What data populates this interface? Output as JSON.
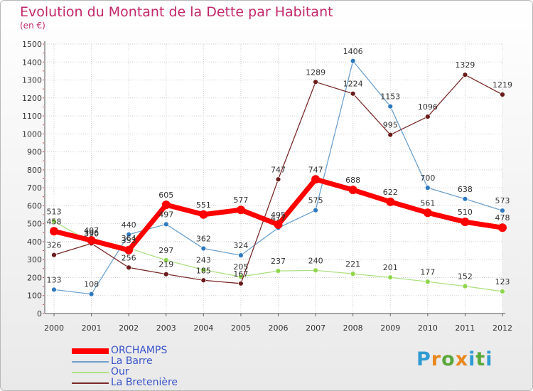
{
  "header": {
    "title": "Evolution du Montant de la Dette par Habitant",
    "unit": "(en €)"
  },
  "brand": {
    "text": "Proxiti",
    "letters": [
      "P",
      "r",
      "o",
      "x",
      "i",
      "t",
      "i"
    ],
    "colors": [
      "#2f9bd3",
      "#e8881c",
      "#5aa83a",
      "#e8881c",
      "#2f9bd3",
      "#5aa83a",
      "#2f9bd3"
    ]
  },
  "chart_data": {
    "type": "line",
    "x": [
      "2000",
      "2001",
      "2002",
      "2003",
      "2004",
      "2005",
      "2006",
      "2007",
      "2008",
      "2009",
      "2010",
      "2011",
      "2012"
    ],
    "ylim": [
      0,
      1500
    ],
    "yticks": [
      0,
      100,
      200,
      300,
      400,
      500,
      600,
      700,
      800,
      900,
      1000,
      1100,
      1200,
      1300,
      1400,
      1500
    ],
    "grid": true,
    "legend_position": "bottom-left",
    "series": [
      {
        "name": "ORCHAMPS",
        "color": "#ff0000",
        "marker_color": "#ff0000",
        "values": [
          458,
          407,
          353,
          605,
          551,
          577,
          495,
          747,
          688,
          622,
          561,
          510,
          478
        ]
      },
      {
        "name": "La Barre",
        "color": "#6fa1cc",
        "marker_color": "#2e7ac2",
        "values": [
          133,
          108,
          440,
          497,
          362,
          324,
          477,
          575,
          1406,
          1153,
          700,
          638,
          573
        ]
      },
      {
        "name": "Our",
        "color": "#aee083",
        "marker_color": "#8fd64a",
        "values": [
          513,
          396,
          364,
          297,
          243,
          205,
          237,
          240,
          221,
          201,
          177,
          152,
          123
        ]
      },
      {
        "name": "La Bretenière",
        "color": "#7b2a2a",
        "marker_color": "#6b1b1b",
        "values": [
          326,
          390,
          256,
          219,
          185,
          167,
          747,
          1289,
          1224,
          995,
          1096,
          1329,
          1219
        ]
      }
    ]
  }
}
